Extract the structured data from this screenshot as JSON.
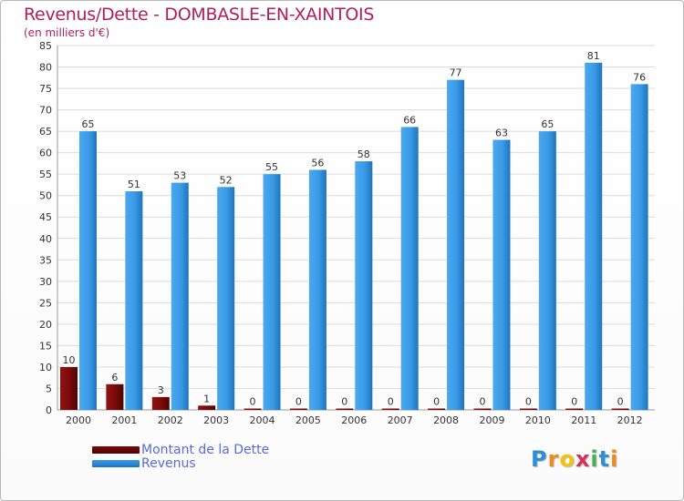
{
  "header": {
    "title": "Revenus/Dette - DOMBASLE-EN-XAINTOIS",
    "subtitle": "(en milliers d'€)"
  },
  "colors": {
    "title": "#b0205a",
    "debt": "#7a0a0a",
    "revenue": "#3a9ae6",
    "legend_text": "#5a6ad8",
    "grid": "#dcdcdc"
  },
  "chart_data": {
    "type": "bar",
    "categories": [
      "2000",
      "2001",
      "2002",
      "2003",
      "2004",
      "2005",
      "2006",
      "2007",
      "2008",
      "2009",
      "2010",
      "2011",
      "2012"
    ],
    "series": [
      {
        "name": "Montant de la Dette",
        "values": [
          10,
          6,
          3,
          1,
          0,
          0,
          0,
          0,
          0,
          0,
          0,
          0,
          0
        ]
      },
      {
        "name": "Revenus",
        "values": [
          65,
          51,
          53,
          52,
          55,
          56,
          58,
          66,
          77,
          63,
          65,
          81,
          76
        ]
      }
    ],
    "title": "Revenus/Dette - DOMBASLE-EN-XAINTOIS",
    "xlabel": "",
    "ylabel": "",
    "ylim": [
      0,
      85
    ],
    "yticks": [
      0,
      5,
      10,
      15,
      20,
      25,
      30,
      35,
      40,
      45,
      50,
      55,
      60,
      65,
      70,
      75,
      80,
      85
    ],
    "grid": true,
    "legend_position": "bottom-left"
  },
  "logo": {
    "text": "Proxiti",
    "letters": [
      {
        "ch": "P",
        "color": "#2f8fd6"
      },
      {
        "ch": "r",
        "color": "#f08a1c"
      },
      {
        "ch": "o",
        "color": "#f4c20d"
      },
      {
        "ch": "x",
        "color": "#d6305a"
      },
      {
        "ch": "i",
        "color": "#4caf50"
      },
      {
        "ch": "t",
        "color": "#2f8fd6"
      },
      {
        "ch": "i",
        "color": "#f08a1c"
      }
    ]
  }
}
